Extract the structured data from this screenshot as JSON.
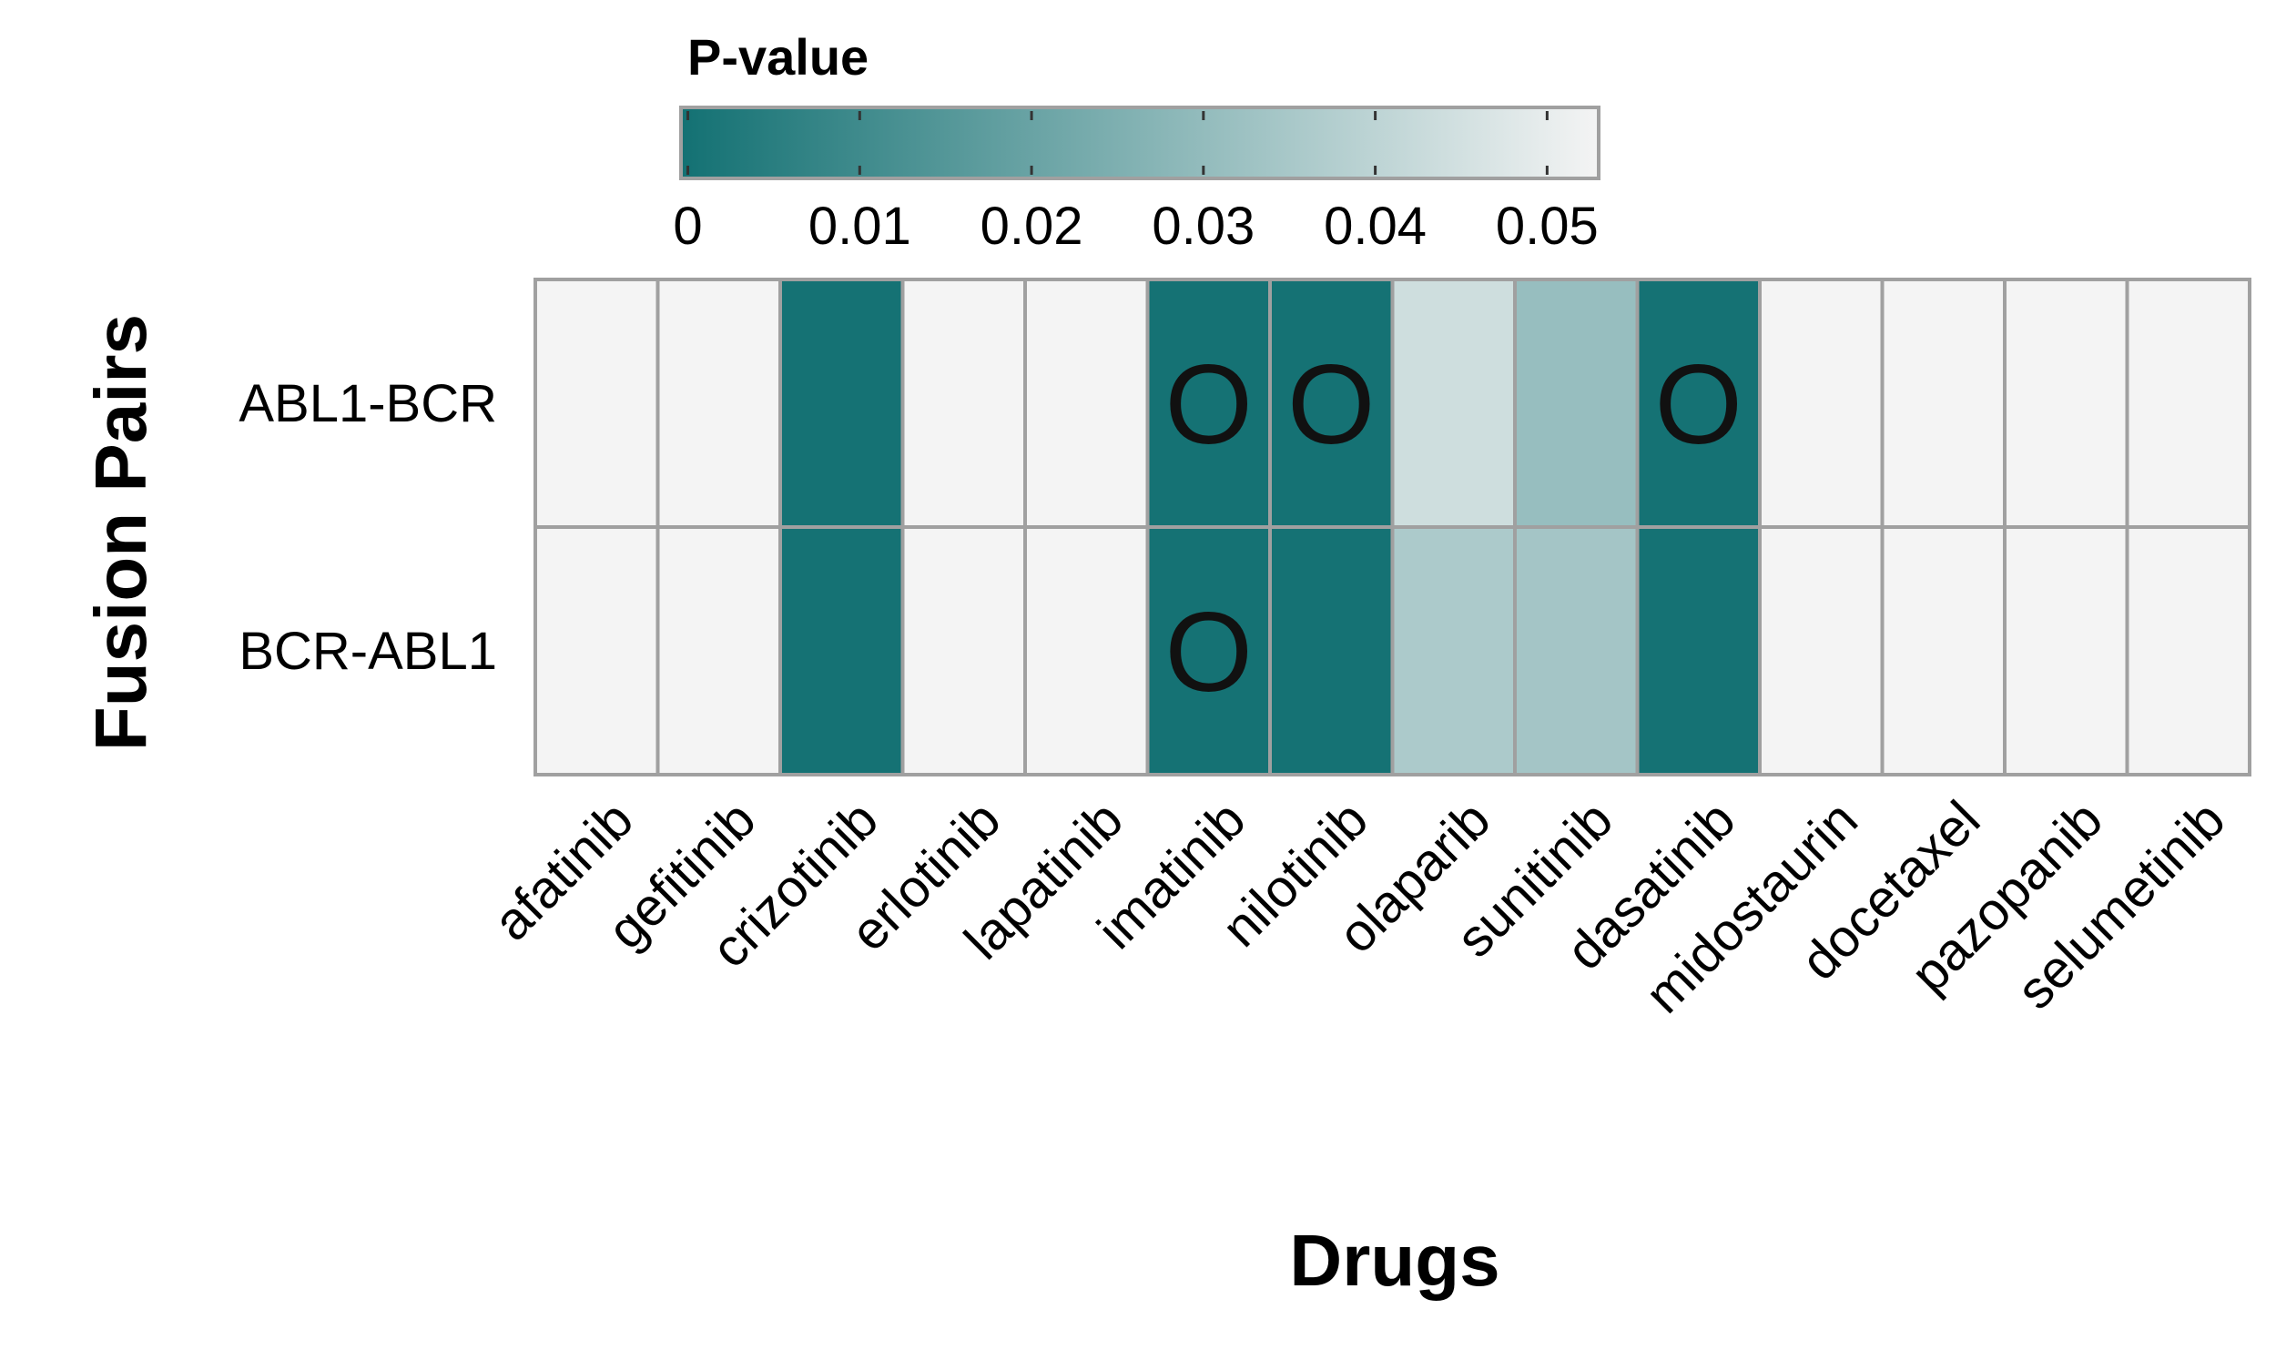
{
  "chart_data": {
    "type": "heatmap",
    "xlabel": "Drugs",
    "ylabel": "Fusion Pairs",
    "colorbar": {
      "title": "P-value",
      "ticks": [
        "0",
        "0.01",
        "0.02",
        "0.03",
        "0.04",
        "0.05"
      ],
      "tick_values": [
        0,
        0.01,
        0.02,
        0.03,
        0.04,
        0.05
      ],
      "range": [
        -0.0004,
        0.053
      ],
      "color_low": "#137173",
      "color_high": "#f4f4f4"
    },
    "rows": [
      "ABL1-BCR",
      "BCR-ABL1"
    ],
    "columns": [
      "afatinib",
      "gefitinib",
      "crizotinib",
      "erlotinib",
      "lapatinib",
      "imatinib",
      "nilotinib",
      "olaparib",
      "sunitinib",
      "dasatinib",
      "midostaurin",
      "docetaxel",
      "pazopanib",
      "selumetinib"
    ],
    "values": [
      [
        null,
        null,
        0.0,
        null,
        null,
        0.0,
        0.0,
        0.044,
        0.031,
        0.0,
        null,
        null,
        null,
        null
      ],
      [
        null,
        null,
        0.0,
        null,
        null,
        0.0,
        0.0,
        0.036,
        0.034,
        0.0,
        null,
        null,
        null,
        null
      ]
    ],
    "markers": [
      [
        "",
        "",
        "",
        "",
        "",
        "O",
        "O",
        "",
        "",
        "O",
        "",
        "",
        "",
        ""
      ],
      [
        "",
        "",
        "",
        "",
        "",
        "O",
        "",
        "",
        "",
        "",
        "",
        "",
        "",
        ""
      ]
    ],
    "na_color": "#f4f4f4",
    "grid_color": "#a0a0a0"
  }
}
